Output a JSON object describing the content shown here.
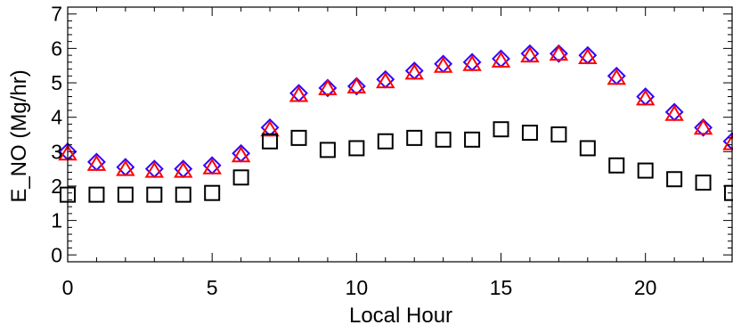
{
  "chart_data": {
    "type": "scatter",
    "title": "",
    "xlabel": "Local Hour",
    "ylabel": "E_NO (Mg/hr)",
    "xlim": [
      0,
      23
    ],
    "ylim": [
      -0.2,
      7.2
    ],
    "x_ticks": [
      0,
      5,
      10,
      15,
      20
    ],
    "x_tick_labels": [
      "0",
      "5",
      "10",
      "15",
      "20"
    ],
    "y_ticks": [
      0,
      1,
      2,
      3,
      4,
      5,
      6,
      7
    ],
    "y_tick_labels": [
      "0",
      "1",
      "2",
      "3",
      "4",
      "5",
      "6",
      "7"
    ],
    "grid": false,
    "legend": "none",
    "x": [
      0,
      1,
      2,
      3,
      4,
      5,
      6,
      7,
      8,
      9,
      10,
      11,
      12,
      13,
      14,
      15,
      16,
      17,
      18,
      19,
      20,
      21,
      22,
      23
    ],
    "series": [
      {
        "marker": "diamond",
        "color": "#3300ff",
        "values": [
          3.0,
          2.7,
          2.55,
          2.5,
          2.5,
          2.6,
          2.95,
          3.7,
          4.7,
          4.85,
          4.9,
          5.1,
          5.35,
          5.55,
          5.6,
          5.7,
          5.85,
          5.85,
          5.8,
          5.2,
          4.6,
          4.15,
          3.7,
          3.3
        ]
      },
      {
        "marker": "triangle",
        "color": "#ff0000",
        "values": [
          2.95,
          2.65,
          2.5,
          2.45,
          2.45,
          2.55,
          2.9,
          3.65,
          4.65,
          4.85,
          4.9,
          5.05,
          5.3,
          5.5,
          5.55,
          5.65,
          5.8,
          5.85,
          5.75,
          5.15,
          4.55,
          4.1,
          3.7,
          3.25
        ]
      },
      {
        "marker": "square",
        "color": "#000000",
        "values": [
          1.75,
          1.75,
          1.75,
          1.75,
          1.75,
          1.8,
          2.25,
          3.3,
          3.4,
          3.05,
          3.1,
          3.3,
          3.4,
          3.35,
          3.35,
          3.65,
          3.55,
          3.5,
          3.1,
          2.6,
          2.45,
          2.2,
          2.1,
          1.8
        ]
      }
    ]
  }
}
